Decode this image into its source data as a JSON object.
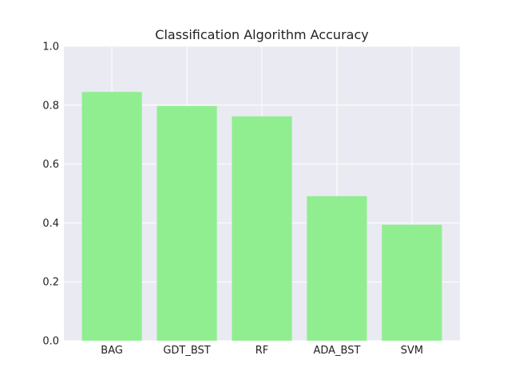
{
  "chart_data": {
    "type": "bar",
    "title": "Classification Algorithm Accuracy",
    "xlabel": "",
    "ylabel": "",
    "categories": [
      "BAG",
      "GDT_BST",
      "RF",
      "ADA_BST",
      "SVM"
    ],
    "values": [
      0.845,
      0.797,
      0.762,
      0.491,
      0.394
    ],
    "ylim": [
      0,
      1.0
    ],
    "yticks": [
      0.0,
      0.2,
      0.4,
      0.6,
      0.8,
      1.0
    ],
    "ytick_labels": [
      "0.0",
      "0.2",
      "0.4",
      "0.6",
      "0.8",
      "1.0"
    ],
    "grid": true,
    "legend": "none",
    "colors": {
      "bar": "#90ee90",
      "plot_background": "#eaeaf2",
      "grid": "#ffffff",
      "text": "#222222"
    }
  }
}
